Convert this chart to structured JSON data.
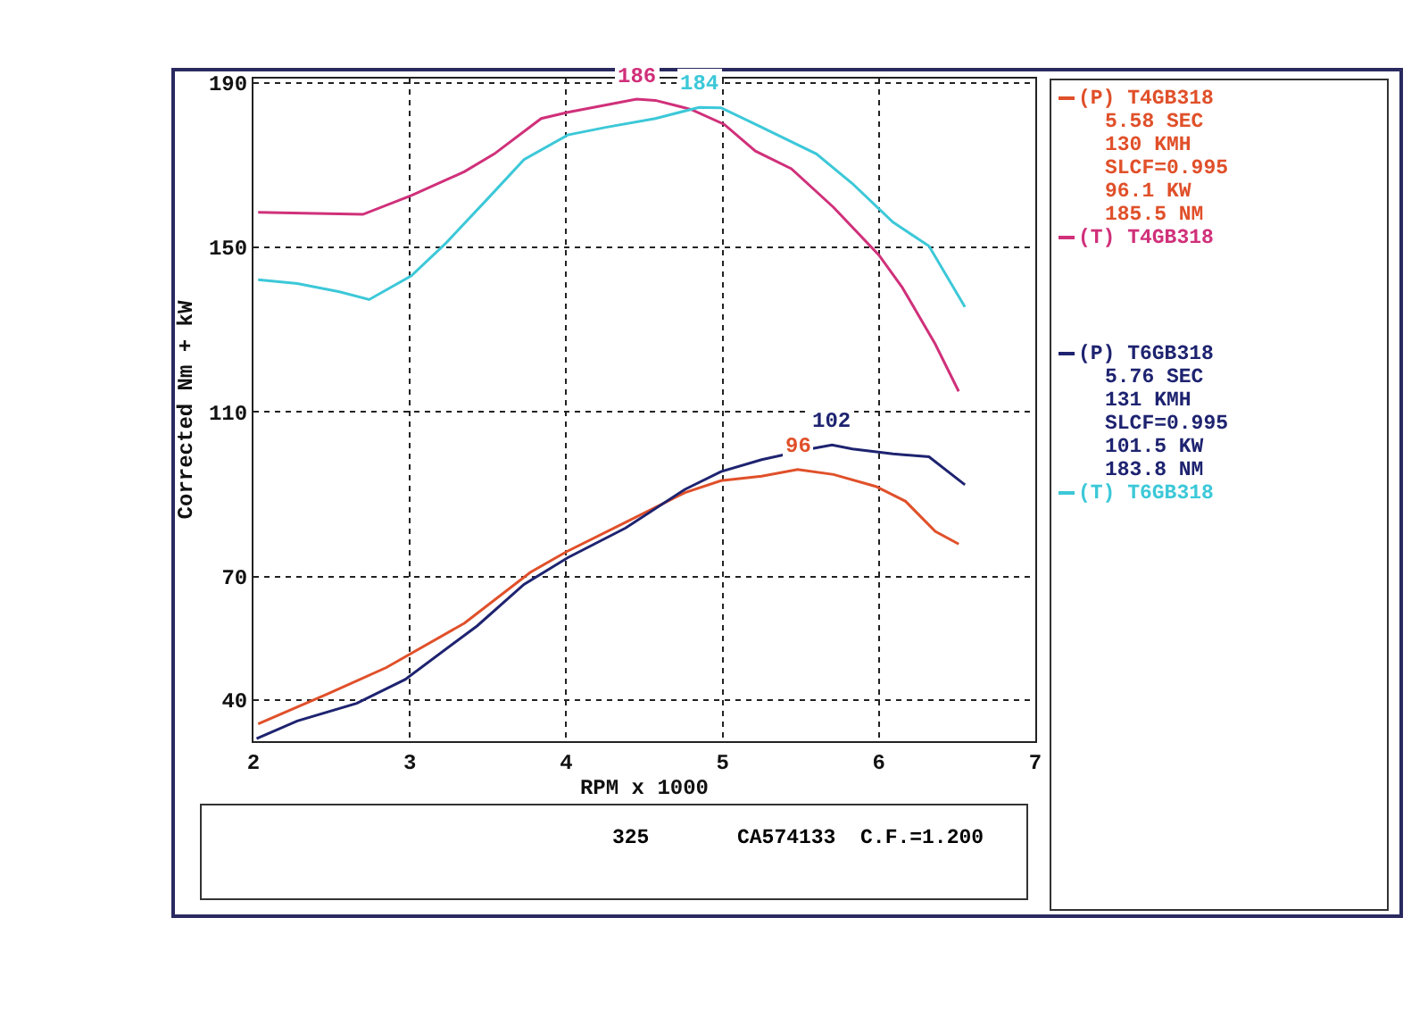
{
  "chart_data": {
    "type": "line",
    "xlabel": "RPM x 1000",
    "ylabel": "Corrected Nm + kW",
    "xlim": [
      2,
      7
    ],
    "xticks": [
      2,
      3,
      4,
      5,
      6,
      7
    ],
    "ylim": [
      30,
      191
    ],
    "yticks": [
      40,
      70,
      110,
      150,
      190
    ],
    "grid": true,
    "legend": "right",
    "line_style": "solid",
    "marker": "none",
    "series": [
      {
        "name": "(P) T4GB318",
        "color": "#e0502a",
        "x": [
          2.03,
          2.47,
          2.85,
          3.35,
          3.77,
          4.0,
          4.38,
          4.76,
          4.99,
          5.25,
          5.48,
          5.71,
          5.98,
          6.17,
          6.36,
          6.51
        ],
        "values": [
          34.2,
          41.4,
          47.9,
          58.7,
          71,
          76,
          83.2,
          90.4,
          93.3,
          94.4,
          96,
          94.8,
          91.9,
          88.3,
          81,
          77.9
        ]
      },
      {
        "name": "(T) T4GB318",
        "color": "#d0307a",
        "x": [
          2.03,
          2.32,
          2.7,
          3.01,
          3.35,
          3.54,
          3.84,
          4.01,
          4.45,
          4.57,
          4.8,
          5.01,
          5.21,
          5.44,
          5.71,
          6.0,
          6.15,
          6.36,
          6.51
        ],
        "values": [
          158.5,
          158.3,
          158,
          162.6,
          168.4,
          172.7,
          181.3,
          182.8,
          186,
          185.7,
          183.5,
          179.9,
          173.4,
          169.1,
          159.7,
          148.1,
          140.2,
          126.5,
          115
        ]
      },
      {
        "name": "(P) T6GB318",
        "color": "#1e2370",
        "x": [
          2.02,
          2.28,
          2.66,
          2.97,
          3.43,
          3.73,
          4.01,
          4.38,
          4.76,
          4.99,
          5.25,
          5.56,
          5.7,
          5.83,
          6.09,
          6.32,
          6.55
        ],
        "values": [
          30.6,
          34.9,
          39.2,
          45,
          58,
          68.1,
          74.6,
          81.8,
          91.2,
          95.5,
          98.4,
          101,
          102,
          101,
          99.8,
          99.1,
          92.3
        ]
      },
      {
        "name": "(T) T6GB318",
        "color": "#3cc8d8",
        "x": [
          2.03,
          2.28,
          2.55,
          2.74,
          3.01,
          3.23,
          3.5,
          3.73,
          4.01,
          4.26,
          4.57,
          4.85,
          4.99,
          5.21,
          5.6,
          5.83,
          6.09,
          6.32,
          6.55
        ],
        "values": [
          142.1,
          141.2,
          139.2,
          137.3,
          143.1,
          151,
          161.9,
          171.3,
          177.3,
          179.2,
          181.3,
          184,
          183.9,
          179.9,
          172.7,
          165.5,
          156.1,
          150.3,
          135.5
        ]
      }
    ],
    "annotations": [
      {
        "text": "186",
        "x": 4.45,
        "y": 186
      },
      {
        "text": "184",
        "x": 4.85,
        "y": 184
      },
      {
        "text": "96",
        "x": 5.48,
        "y": 96
      },
      {
        "text": "102",
        "x": 5.7,
        "y": 102
      },
      "5.58 SEC",
      "130 KMH",
      "SLCF=0.995",
      "96.1 KW",
      "185.5 NM",
      "5.76 SEC",
      "131 KMH",
      "SLCF=0.995",
      "101.5 KW",
      "183.8 NM",
      "325",
      "CA574133  C.F.=1.200"
    ]
  }
}
